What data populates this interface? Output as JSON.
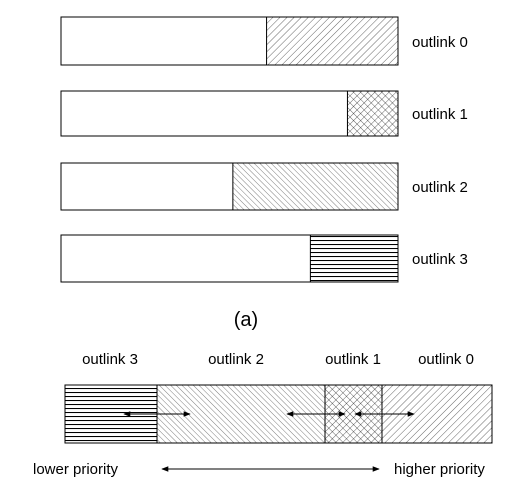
{
  "top_bars": [
    {
      "label": "outlink 0",
      "pattern": "diagonal-hatch",
      "filled_fraction": 0.39
    },
    {
      "label": "outlink 1",
      "pattern": "crosshatch",
      "filled_fraction": 0.15
    },
    {
      "label": "outlink 2",
      "pattern": "fine-diagonal-hatch",
      "filled_fraction": 0.49
    },
    {
      "label": "outlink 3",
      "pattern": "horizontal-lines",
      "filled_fraction": 0.26
    }
  ],
  "caption": "(a)",
  "combined_bar": {
    "segments": [
      {
        "label": "outlink 3",
        "pattern": "horizontal-lines"
      },
      {
        "label": "outlink 2",
        "pattern": "fine-diagonal-hatch"
      },
      {
        "label": "outlink 1",
        "pattern": "crosshatch"
      },
      {
        "label": "outlink 0",
        "pattern": "diagonal-hatch"
      }
    ]
  },
  "priority_axis": {
    "left_label": "lower priority",
    "right_label": "higher priority"
  }
}
